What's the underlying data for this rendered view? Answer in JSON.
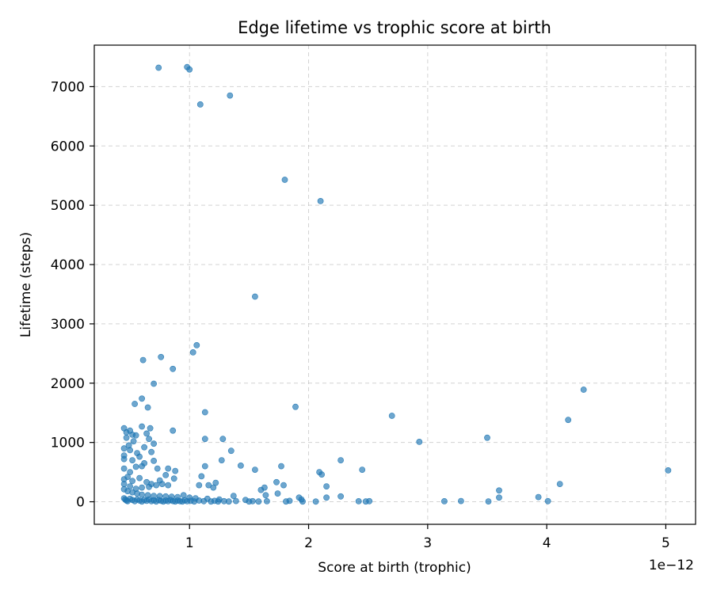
{
  "chart_data": {
    "type": "scatter",
    "title": "Edge lifetime vs trophic score at birth",
    "xlabel": "Score at birth (trophic)",
    "ylabel": "Lifetime (steps)",
    "x_offset_label": "1e−12",
    "x_scale_note": "x tick labels shown in units of 1e-12",
    "xlim": [
      0.2,
      5.25
    ],
    "ylim": [
      -380,
      7700
    ],
    "xticks": [
      1,
      2,
      3,
      4,
      5
    ],
    "xtick_labels": [
      "1",
      "2",
      "3",
      "4",
      "5"
    ],
    "yticks": [
      0,
      1000,
      2000,
      3000,
      4000,
      5000,
      6000,
      7000
    ],
    "ytick_labels": [
      "0",
      "1000",
      "2000",
      "3000",
      "4000",
      "5000",
      "6000",
      "7000"
    ],
    "grid": true,
    "marker_color": "#1f77b4",
    "series": [
      {
        "points": [
          [
            0.74,
            7320
          ],
          [
            0.98,
            7330
          ],
          [
            1.0,
            7290
          ],
          [
            1.09,
            6700
          ],
          [
            1.34,
            6850
          ],
          [
            1.8,
            5430
          ],
          [
            2.1,
            5070
          ],
          [
            1.55,
            3460
          ],
          [
            1.06,
            2640
          ],
          [
            1.03,
            2520
          ],
          [
            0.76,
            2440
          ],
          [
            0.61,
            2390
          ],
          [
            0.86,
            2240
          ],
          [
            0.7,
            1990
          ],
          [
            0.6,
            1740
          ],
          [
            0.54,
            1650
          ],
          [
            0.65,
            1590
          ],
          [
            1.13,
            1510
          ],
          [
            1.89,
            1600
          ],
          [
            2.7,
            1450
          ],
          [
            4.31,
            1890
          ],
          [
            4.18,
            1380
          ],
          [
            3.5,
            1080
          ],
          [
            2.93,
            1010
          ],
          [
            0.45,
            1240
          ],
          [
            0.47,
            1170
          ],
          [
            0.5,
            1200
          ],
          [
            0.52,
            1130
          ],
          [
            0.55,
            1120
          ],
          [
            0.6,
            1270
          ],
          [
            0.67,
            1240
          ],
          [
            0.86,
            1200
          ],
          [
            0.64,
            1150
          ],
          [
            0.47,
            1080
          ],
          [
            0.53,
            1020
          ],
          [
            0.66,
            1060
          ],
          [
            0.7,
            980
          ],
          [
            0.62,
            920
          ],
          [
            0.49,
            950
          ],
          [
            1.13,
            1060
          ],
          [
            1.28,
            1060
          ],
          [
            0.45,
            900
          ],
          [
            0.5,
            870
          ],
          [
            0.56,
            820
          ],
          [
            0.45,
            780
          ],
          [
            0.58,
            760
          ],
          [
            0.68,
            840
          ],
          [
            0.52,
            700
          ],
          [
            0.62,
            650
          ],
          [
            0.7,
            690
          ],
          [
            0.45,
            720
          ],
          [
            0.55,
            590
          ],
          [
            0.6,
            600
          ],
          [
            0.73,
            560
          ],
          [
            0.82,
            560
          ],
          [
            0.88,
            520
          ],
          [
            1.35,
            860
          ],
          [
            1.27,
            700
          ],
          [
            1.13,
            600
          ],
          [
            1.43,
            610
          ],
          [
            1.55,
            540
          ],
          [
            1.77,
            600
          ],
          [
            2.27,
            700
          ],
          [
            2.09,
            500
          ],
          [
            2.11,
            460
          ],
          [
            2.45,
            540
          ],
          [
            0.45,
            560
          ],
          [
            0.5,
            500
          ],
          [
            0.48,
            420
          ],
          [
            0.45,
            380
          ],
          [
            0.52,
            350
          ],
          [
            0.58,
            400
          ],
          [
            0.64,
            330
          ],
          [
            0.68,
            300
          ],
          [
            0.75,
            360
          ],
          [
            0.8,
            450
          ],
          [
            0.87,
            390
          ],
          [
            0.77,
            300
          ],
          [
            0.82,
            280
          ],
          [
            0.72,
            280
          ],
          [
            0.66,
            250
          ],
          [
            0.6,
            240
          ],
          [
            0.55,
            220
          ],
          [
            0.5,
            260
          ],
          [
            0.45,
            300
          ],
          [
            1.1,
            430
          ],
          [
            1.08,
            280
          ],
          [
            1.16,
            280
          ],
          [
            1.22,
            320
          ],
          [
            1.2,
            240
          ],
          [
            1.73,
            330
          ],
          [
            1.79,
            280
          ],
          [
            1.6,
            200
          ],
          [
            1.63,
            240
          ],
          [
            2.15,
            260
          ],
          [
            3.6,
            190
          ],
          [
            4.11,
            300
          ],
          [
            0.45,
            210
          ],
          [
            0.48,
            180
          ],
          [
            0.52,
            160
          ],
          [
            0.56,
            140
          ],
          [
            0.6,
            120
          ],
          [
            0.65,
            110
          ],
          [
            0.7,
            100
          ],
          [
            0.75,
            95
          ],
          [
            0.8,
            90
          ],
          [
            0.85,
            85
          ],
          [
            0.9,
            80
          ],
          [
            0.95,
            110
          ],
          [
            1.0,
            70
          ],
          [
            1.05,
            60
          ],
          [
            1.15,
            50
          ],
          [
            1.25,
            40
          ],
          [
            1.37,
            100
          ],
          [
            1.47,
            30
          ],
          [
            1.64,
            110
          ],
          [
            1.74,
            140
          ],
          [
            1.92,
            70
          ],
          [
            1.94,
            40
          ],
          [
            2.15,
            70
          ],
          [
            2.27,
            90
          ],
          [
            3.6,
            70
          ],
          [
            3.93,
            80
          ],
          [
            0.45,
            60
          ],
          [
            0.46,
            40
          ],
          [
            0.47,
            20
          ],
          [
            0.48,
            10
          ],
          [
            0.5,
            50
          ],
          [
            0.52,
            30
          ],
          [
            0.54,
            10
          ],
          [
            0.56,
            40
          ],
          [
            0.58,
            20
          ],
          [
            0.6,
            5
          ],
          [
            0.62,
            30
          ],
          [
            0.64,
            15
          ],
          [
            0.66,
            40
          ],
          [
            0.68,
            10
          ],
          [
            0.7,
            25
          ],
          [
            0.72,
            5
          ],
          [
            0.74,
            30
          ],
          [
            0.76,
            15
          ],
          [
            0.78,
            5
          ],
          [
            0.8,
            20
          ],
          [
            0.82,
            8
          ],
          [
            0.84,
            30
          ],
          [
            0.86,
            12
          ],
          [
            0.88,
            5
          ],
          [
            0.9,
            20
          ],
          [
            0.92,
            10
          ],
          [
            0.94,
            5
          ],
          [
            0.96,
            25
          ],
          [
            0.98,
            8
          ],
          [
            1.01,
            15
          ],
          [
            1.04,
            5
          ],
          [
            1.08,
            20
          ],
          [
            1.12,
            10
          ],
          [
            1.18,
            5
          ],
          [
            1.21,
            15
          ],
          [
            1.24,
            5
          ],
          [
            1.29,
            10
          ],
          [
            1.33,
            5
          ],
          [
            1.39,
            12
          ],
          [
            1.5,
            5
          ],
          [
            1.53,
            10
          ],
          [
            1.58,
            5
          ],
          [
            1.65,
            8
          ],
          [
            1.81,
            5
          ],
          [
            1.84,
            15
          ],
          [
            1.95,
            5
          ],
          [
            2.06,
            3
          ],
          [
            2.42,
            8
          ],
          [
            2.48,
            5
          ],
          [
            2.51,
            10
          ],
          [
            3.14,
            8
          ],
          [
            3.28,
            12
          ],
          [
            3.51,
            6
          ],
          [
            4.01,
            10
          ],
          [
            5.02,
            530
          ]
        ]
      }
    ]
  }
}
